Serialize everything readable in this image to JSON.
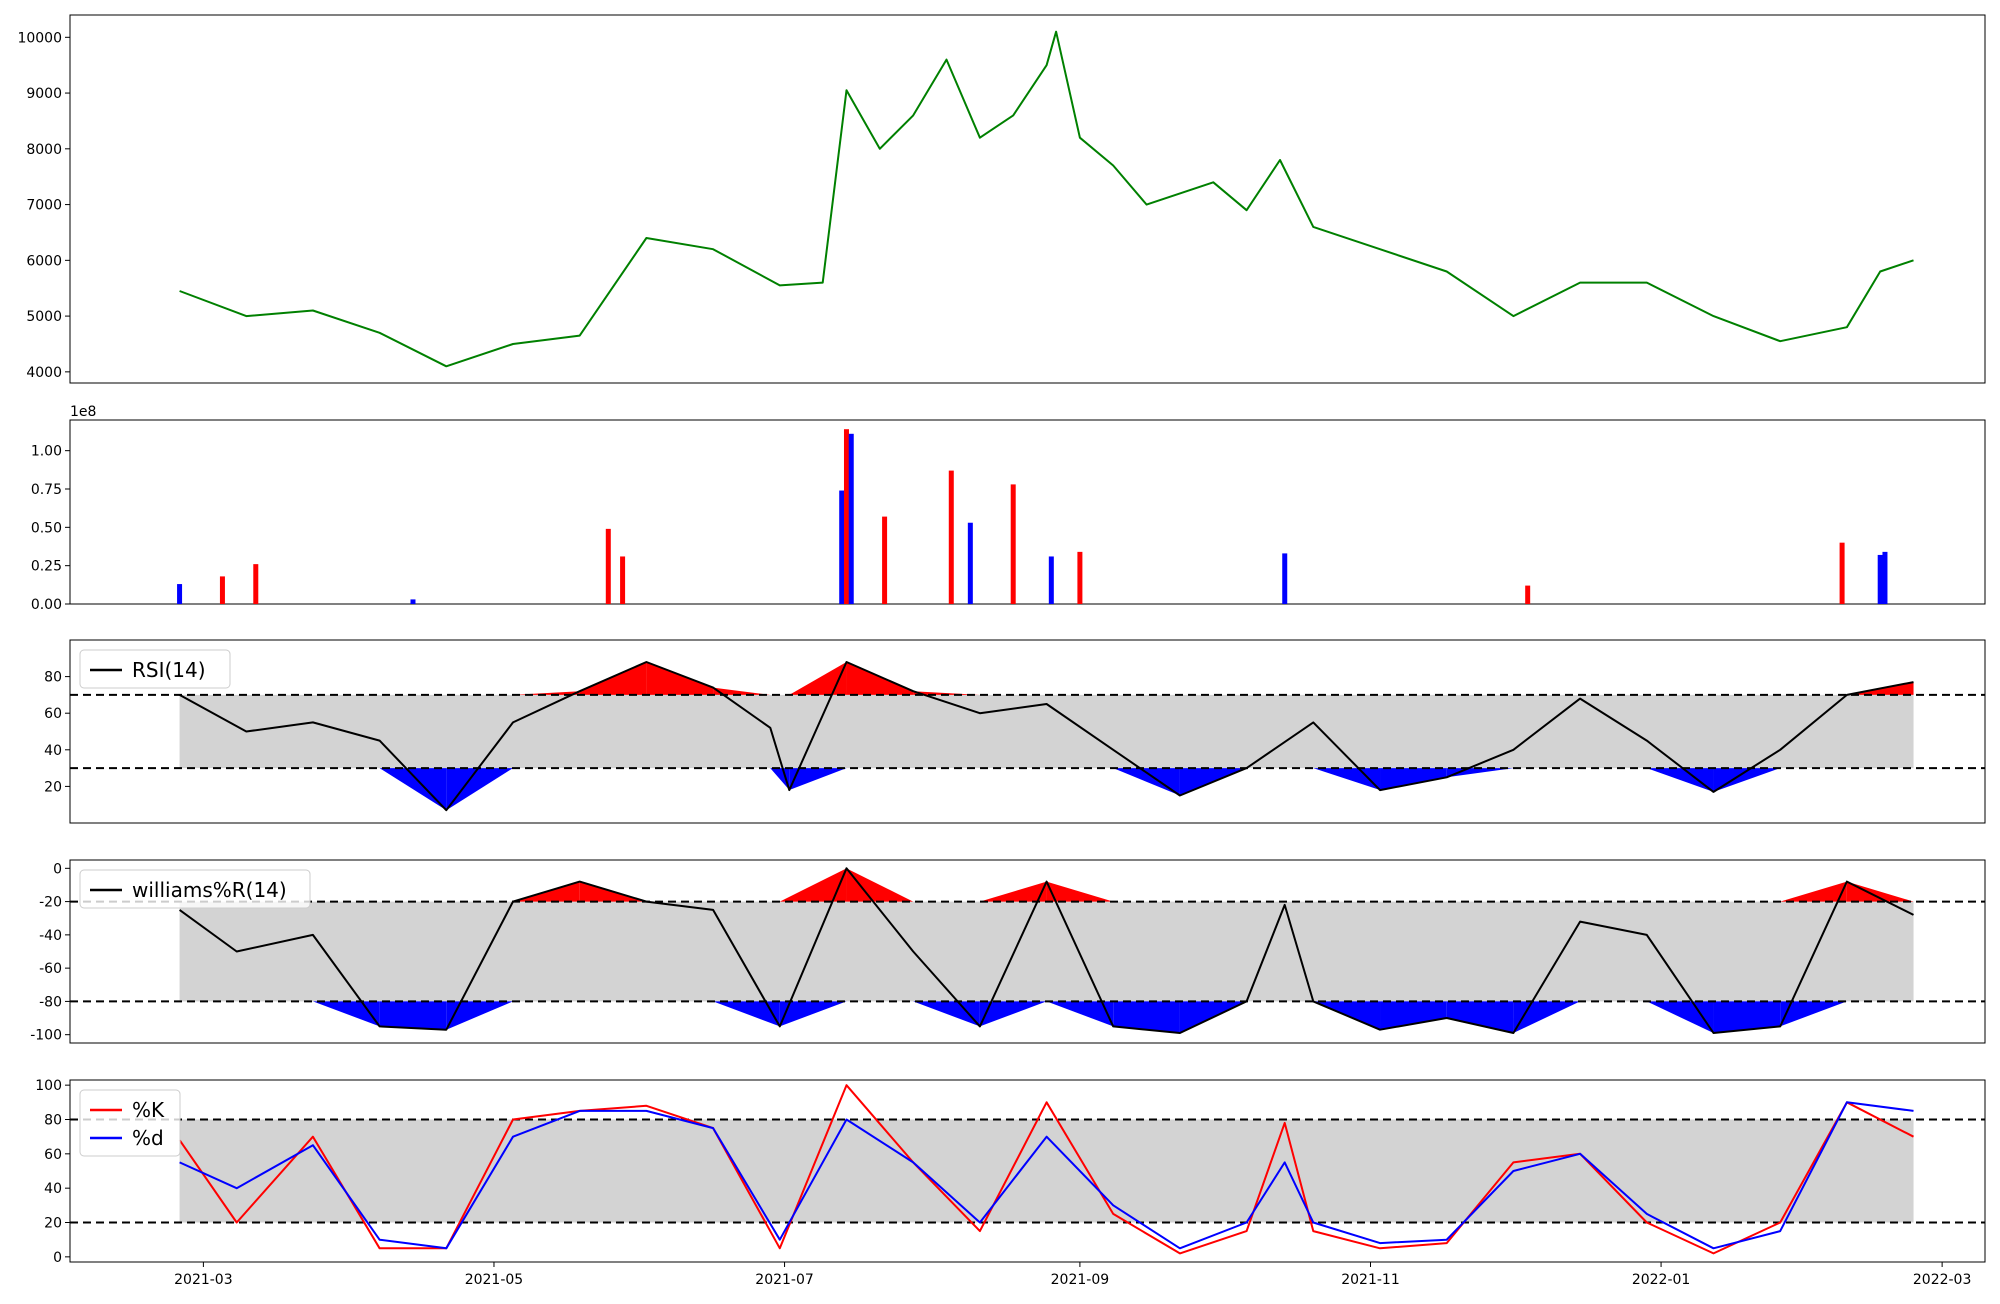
{
  "x_ticks": [
    "2021-03",
    "2021-05",
    "2021-07",
    "2021-09",
    "2021-11",
    "2022-01",
    "2022-03"
  ],
  "price_yticks": [
    4000,
    5000,
    6000,
    7000,
    8000,
    9000,
    10000
  ],
  "volume_yticks": [
    "0.00",
    "0.25",
    "0.50",
    "0.75",
    "1.00"
  ],
  "volume_exponent": "1e8",
  "rsi_yticks": [
    20,
    40,
    60,
    80
  ],
  "wr_yticks": [
    0,
    -20,
    -40,
    -60,
    -80,
    -100
  ],
  "stoch_yticks": [
    0,
    20,
    40,
    60,
    80,
    100
  ],
  "legends": {
    "rsi": "RSI(14)",
    "wr": "williams%R(14)",
    "k": "%K",
    "d": "%d"
  },
  "colors": {
    "price": "#008000",
    "up": "#ff0000",
    "down": "#0000ff",
    "band": "#d3d3d3",
    "line": "#000000"
  },
  "chart_data": [
    {
      "type": "line",
      "panel": "price",
      "series": [
        {
          "name": "",
          "x": [
            "2021-02-24",
            "2021-03-10",
            "2021-03-24",
            "2021-04-07",
            "2021-04-21",
            "2021-05-05",
            "2021-05-19",
            "2021-06-02",
            "2021-06-16",
            "2021-06-30",
            "2021-07-09",
            "2021-07-14",
            "2021-07-21",
            "2021-07-28",
            "2021-08-04",
            "2021-08-11",
            "2021-08-18",
            "2021-08-25",
            "2021-08-27",
            "2021-09-01",
            "2021-09-08",
            "2021-09-15",
            "2021-09-29",
            "2021-10-06",
            "2021-10-13",
            "2021-10-20",
            "2021-11-03",
            "2021-11-17",
            "2021-12-01",
            "2021-12-15",
            "2021-12-29",
            "2022-01-12",
            "2022-01-26",
            "2022-02-09",
            "2022-02-16",
            "2022-02-23"
          ],
          "values": [
            5450,
            5000,
            5100,
            4700,
            4100,
            4500,
            4650,
            6400,
            6200,
            5550,
            5600,
            9050,
            8000,
            8600,
            9600,
            8200,
            8600,
            9500,
            10100,
            8200,
            7700,
            7000,
            7400,
            6900,
            7800,
            6600,
            6200,
            5800,
            5000,
            5600,
            5600,
            5000,
            4550,
            4800,
            5800,
            6000
          ]
        }
      ],
      "ylim": [
        3800,
        10400
      ]
    },
    {
      "type": "bar",
      "panel": "volume",
      "x": [
        "2021-02-24",
        "2021-03-05",
        "2021-03-12",
        "2021-04-14",
        "2021-05-25",
        "2021-05-28",
        "2021-07-13",
        "2021-07-14",
        "2021-07-15",
        "2021-07-22",
        "2021-08-05",
        "2021-08-09",
        "2021-08-18",
        "2021-08-26",
        "2021-09-01",
        "2021-10-14",
        "2021-12-04",
        "2022-02-08",
        "2022-02-16",
        "2022-02-17"
      ],
      "values": [
        0.13,
        0.18,
        0.26,
        0.03,
        0.49,
        0.31,
        0.74,
        1.14,
        1.11,
        0.57,
        0.87,
        0.53,
        0.78,
        0.31,
        0.34,
        0.33,
        0.12,
        0.4,
        0.32,
        0.34
      ],
      "colors": [
        "down",
        "up",
        "up",
        "down",
        "up",
        "up",
        "down",
        "up",
        "down",
        "up",
        "up",
        "down",
        "up",
        "down",
        "up",
        "down",
        "up",
        "up",
        "down",
        "down"
      ],
      "ylim": [
        0,
        1.2
      ]
    },
    {
      "type": "line",
      "panel": "rsi",
      "series": [
        {
          "name": "RSI(14)",
          "x": [
            "2021-02-24",
            "2021-03-10",
            "2021-03-24",
            "2021-04-07",
            "2021-04-21",
            "2021-05-05",
            "2021-05-19",
            "2021-06-02",
            "2021-06-16",
            "2021-06-28",
            "2021-07-02",
            "2021-07-14",
            "2021-07-28",
            "2021-08-11",
            "2021-08-25",
            "2021-09-08",
            "2021-09-22",
            "2021-10-06",
            "2021-10-20",
            "2021-11-03",
            "2021-11-17",
            "2021-12-01",
            "2021-12-15",
            "2021-12-29",
            "2022-01-12",
            "2022-01-26",
            "2022-02-09",
            "2022-02-23"
          ],
          "values": [
            70,
            50,
            55,
            45,
            7,
            55,
            72,
            88,
            74,
            52,
            18,
            88,
            72,
            60,
            65,
            40,
            15,
            30,
            55,
            18,
            25,
            40,
            68,
            45,
            17,
            40,
            70,
            77
          ]
        }
      ],
      "ylim": [
        0,
        100
      ],
      "levels": [
        30,
        70
      ]
    },
    {
      "type": "line",
      "panel": "williams",
      "series": [
        {
          "name": "williams%R(14)",
          "x": [
            "2021-02-24",
            "2021-03-08",
            "2021-03-24",
            "2021-04-07",
            "2021-04-21",
            "2021-05-05",
            "2021-05-19",
            "2021-06-02",
            "2021-06-16",
            "2021-06-30",
            "2021-07-14",
            "2021-07-28",
            "2021-08-11",
            "2021-08-25",
            "2021-09-08",
            "2021-09-22",
            "2021-10-06",
            "2021-10-14",
            "2021-10-20",
            "2021-11-03",
            "2021-11-17",
            "2021-12-01",
            "2021-12-15",
            "2021-12-29",
            "2022-01-12",
            "2022-01-26",
            "2022-02-09",
            "2022-02-23"
          ],
          "values": [
            -25,
            -50,
            -40,
            -95,
            -97,
            -20,
            -8,
            -20,
            -25,
            -95,
            0,
            -50,
            -95,
            -8,
            -95,
            -99,
            -80,
            -22,
            -80,
            -97,
            -90,
            -99,
            -32,
            -40,
            -99,
            -95,
            -8,
            -28
          ]
        }
      ],
      "ylim": [
        -105,
        5
      ],
      "levels": [
        -20,
        -80
      ]
    },
    {
      "type": "line",
      "panel": "stochastic",
      "series": [
        {
          "name": "%K",
          "x": [
            "2021-02-24",
            "2021-03-08",
            "2021-03-24",
            "2021-04-07",
            "2021-04-21",
            "2021-05-05",
            "2021-05-19",
            "2021-06-02",
            "2021-06-16",
            "2021-06-30",
            "2021-07-14",
            "2021-07-28",
            "2021-08-11",
            "2021-08-25",
            "2021-09-08",
            "2021-09-22",
            "2021-10-06",
            "2021-10-14",
            "2021-10-20",
            "2021-11-03",
            "2021-11-17",
            "2021-12-01",
            "2021-12-15",
            "2021-12-29",
            "2022-01-12",
            "2022-01-26",
            "2022-02-09",
            "2022-02-23"
          ],
          "values": [
            68,
            20,
            70,
            5,
            5,
            80,
            85,
            88,
            75,
            5,
            100,
            55,
            15,
            90,
            25,
            2,
            15,
            78,
            15,
            5,
            8,
            55,
            60,
            20,
            2,
            20,
            90,
            70
          ]
        },
        {
          "name": "%d",
          "x": [
            "2021-02-24",
            "2021-03-08",
            "2021-03-24",
            "2021-04-07",
            "2021-04-21",
            "2021-05-05",
            "2021-05-19",
            "2021-06-02",
            "2021-06-16",
            "2021-06-30",
            "2021-07-14",
            "2021-07-28",
            "2021-08-11",
            "2021-08-25",
            "2021-09-08",
            "2021-09-22",
            "2021-10-06",
            "2021-10-14",
            "2021-10-20",
            "2021-11-03",
            "2021-11-17",
            "2021-12-01",
            "2021-12-15",
            "2021-12-29",
            "2022-01-12",
            "2022-01-26",
            "2022-02-09",
            "2022-02-23"
          ],
          "values": [
            55,
            40,
            65,
            10,
            5,
            70,
            85,
            85,
            75,
            10,
            80,
            55,
            20,
            70,
            30,
            5,
            20,
            55,
            20,
            8,
            10,
            50,
            60,
            25,
            5,
            15,
            90,
            85
          ]
        }
      ],
      "ylim": [
        -3,
        103
      ],
      "levels": [
        20,
        80
      ]
    }
  ]
}
